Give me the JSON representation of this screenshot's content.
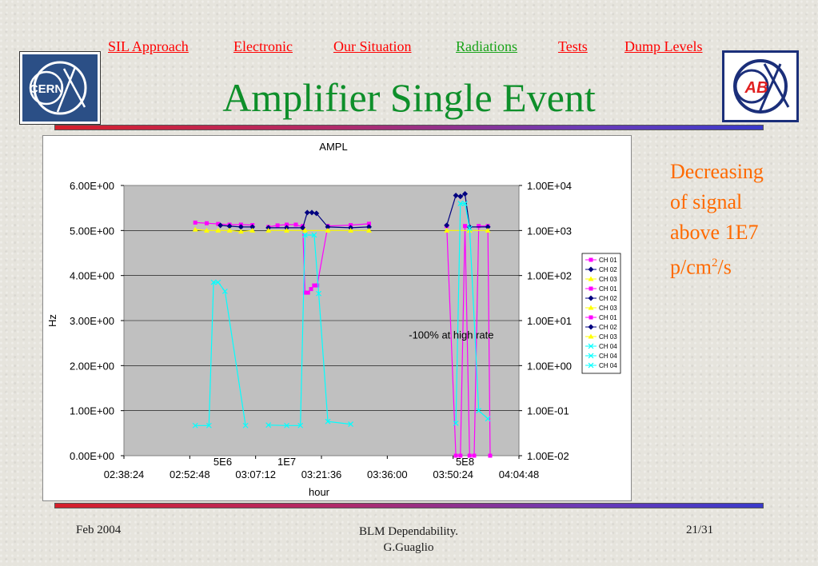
{
  "nav": {
    "items": [
      {
        "label": "SIL Approach",
        "color": "#ff0000"
      },
      {
        "label": "Electronic",
        "color": "#ff0000"
      },
      {
        "label": "Our Situation",
        "color": "#ff0000"
      },
      {
        "label": "Radiations",
        "color": "#19a319"
      },
      {
        "label": "Tests",
        "color": "#ff0000"
      },
      {
        "label": "Dump Levels",
        "color": "#ff0000"
      }
    ]
  },
  "title": "Amplifier Single Event",
  "logos": {
    "left": "CERN",
    "right": "AB"
  },
  "side_note": {
    "line1": "Decreasing",
    "line2": "of signal",
    "line3": "above 1E7",
    "line4_base": "p/cm",
    "line4_sup": "2",
    "line4_tail": "/s"
  },
  "footer": {
    "date": "Feb 2004",
    "center_line1": "BLM Dependability.",
    "center_line2": "G.Guaglio",
    "page": "21/31"
  },
  "chart_data": {
    "type": "line",
    "title": "AMPL",
    "xlabel": "hour",
    "ylabel": "Hz",
    "ylim": [
      0,
      6
    ],
    "y2_scale": "log",
    "y2lim": [
      0.01,
      10000
    ],
    "left_ticks": [
      "0.00E+00",
      "1.00E+00",
      "2.00E+00",
      "3.00E+00",
      "4.00E+00",
      "5.00E+00",
      "6.00E+00"
    ],
    "right_ticks": [
      "1.00E-02",
      "1.00E-01",
      "1.00E+00",
      "1.00E+01",
      "1.00E+02",
      "1.00E+03",
      "1.00E+04"
    ],
    "x_ticks": [
      "02:38:24",
      "02:52:48",
      "03:07:12",
      "03:21:36",
      "03:36:00",
      "03:50:24",
      "04:04:48"
    ],
    "xlim": [
      "02:38:24",
      "04:04:48"
    ],
    "annotations": [
      {
        "text": "5E6",
        "x": "03:00:00"
      },
      {
        "text": "1E7",
        "x": "03:14:00"
      },
      {
        "text": "5E8",
        "x": "03:53:00"
      },
      {
        "text": "-100% at high rate",
        "x": "03:50:00",
        "y": 2.6
      }
    ],
    "legend": {
      "placement": "right",
      "entries": [
        {
          "name": "CH 01",
          "color": "#ff00ff",
          "marker": "square"
        },
        {
          "name": "CH 02",
          "color": "#000080",
          "marker": "diamond"
        },
        {
          "name": "CH 03",
          "color": "#ffff00",
          "marker": "triangle"
        },
        {
          "name": "CH 01",
          "color": "#ff00ff",
          "marker": "square"
        },
        {
          "name": "CH 02",
          "color": "#000080",
          "marker": "diamond"
        },
        {
          "name": "CH 03",
          "color": "#ffff00",
          "marker": "triangle"
        },
        {
          "name": "CH 01",
          "color": "#ff00ff",
          "marker": "square"
        },
        {
          "name": "CH 02",
          "color": "#000080",
          "marker": "diamond"
        },
        {
          "name": "CH 03",
          "color": "#ffff00",
          "marker": "triangle"
        },
        {
          "name": "CH 04",
          "color": "#00ffff",
          "marker": "x"
        },
        {
          "name": "CH 04",
          "color": "#00ffff",
          "marker": "x"
        },
        {
          "name": "CH 04",
          "color": "#00ffff",
          "marker": "x"
        }
      ]
    },
    "series": [
      {
        "color": "#ff00ff",
        "marker": "square",
        "axis": "right",
        "points": [
          [
            "02:54:00",
            1500
          ],
          [
            "02:56:30",
            1450
          ],
          [
            "02:59:00",
            1400
          ],
          [
            "03:01:30",
            1350
          ],
          [
            "03:04:00",
            1350
          ],
          [
            "03:06:30",
            1320
          ]
        ]
      },
      {
        "color": "#000080",
        "marker": "diamond",
        "axis": "right",
        "points": [
          [
            "02:59:30",
            1300
          ],
          [
            "03:01:30",
            1250
          ],
          [
            "03:04:00",
            1200
          ],
          [
            "03:06:30",
            1200
          ]
        ]
      },
      {
        "color": "#ffff00",
        "marker": "triangle",
        "axis": "right",
        "points": [
          [
            "02:54:00",
            1050
          ],
          [
            "02:56:30",
            1000
          ],
          [
            "02:59:00",
            1000
          ],
          [
            "03:01:30",
            1000
          ],
          [
            "03:04:00",
            950
          ],
          [
            "03:06:30",
            1000
          ]
        ]
      },
      {
        "color": "#00ffff",
        "marker": "x",
        "axis": "left",
        "points": [
          [
            "02:54:00",
            0.67
          ],
          [
            "02:57:00",
            0.67
          ],
          [
            "02:58:00",
            3.85
          ],
          [
            "02:59:00",
            3.85
          ],
          [
            "03:00:30",
            3.65
          ],
          [
            "03:05:00",
            0.67
          ]
        ]
      },
      {
        "color": "#ff00ff",
        "marker": "square",
        "axis": "right",
        "points": [
          [
            "03:10:00",
            1200
          ],
          [
            "03:12:00",
            1300
          ],
          [
            "03:14:00",
            1350
          ],
          [
            "03:16:00",
            1350
          ],
          [
            "03:17:30",
            1200
          ]
        ]
      },
      {
        "color": "#ff00ff",
        "marker": "square",
        "axis": "left",
        "points": [
          [
            "03:17:30",
            5.1
          ],
          [
            "03:18:00",
            3.62
          ],
          [
            "03:18:40",
            3.62
          ],
          [
            "03:19:20",
            3.7
          ],
          [
            "03:20:00",
            3.78
          ],
          [
            "03:20:40",
            3.78
          ],
          [
            "03:23:00",
            5.1
          ],
          [
            "03:28:00",
            5.12
          ],
          [
            "03:32:00",
            5.15
          ]
        ]
      },
      {
        "color": "#000080",
        "marker": "diamond",
        "axis": "right",
        "points": [
          [
            "03:10:00",
            1150
          ],
          [
            "03:14:00",
            1150
          ],
          [
            "03:17:30",
            1150
          ],
          [
            "03:18:30",
            2500
          ],
          [
            "03:19:30",
            2500
          ],
          [
            "03:20:30",
            2400
          ],
          [
            "03:23:00",
            1200
          ],
          [
            "03:28:00",
            1150
          ],
          [
            "03:32:00",
            1200
          ]
        ]
      },
      {
        "color": "#ffff00",
        "marker": "triangle",
        "axis": "right",
        "points": [
          [
            "03:10:00",
            1000
          ],
          [
            "03:14:00",
            1000
          ],
          [
            "03:18:00",
            1000
          ],
          [
            "03:23:00",
            1000
          ],
          [
            "03:28:00",
            1000
          ],
          [
            "03:32:00",
            1000
          ]
        ]
      },
      {
        "color": "#00ffff",
        "marker": "x",
        "axis": "left",
        "points": [
          [
            "03:10:00",
            0.68
          ],
          [
            "03:14:00",
            0.67
          ],
          [
            "03:17:00",
            0.67
          ],
          [
            "03:18:00",
            4.9
          ],
          [
            "03:20:00",
            4.9
          ],
          [
            "03:21:00",
            3.6
          ],
          [
            "03:23:00",
            0.76
          ],
          [
            "03:28:00",
            0.7
          ]
        ]
      },
      {
        "color": "#ff00ff",
        "marker": "square",
        "axis": "left",
        "points": [
          [
            "03:49:00",
            5.1
          ],
          [
            "03:51:00",
            0.0
          ],
          [
            "03:52:00",
            0.0
          ],
          [
            "03:53:00",
            5.1
          ],
          [
            "03:54:00",
            0.0
          ],
          [
            "03:55:00",
            0.0
          ],
          [
            "03:56:00",
            5.1
          ],
          [
            "03:58:00",
            5.1
          ],
          [
            "03:58:30",
            0.0
          ]
        ]
      },
      {
        "color": "#000080",
        "marker": "diamond",
        "axis": "right",
        "points": [
          [
            "03:49:00",
            1300
          ],
          [
            "03:51:00",
            6000
          ],
          [
            "03:52:00",
            5700
          ],
          [
            "03:53:00",
            6500
          ],
          [
            "03:54:00",
            1200
          ],
          [
            "03:58:00",
            1200
          ]
        ]
      },
      {
        "color": "#ffff00",
        "marker": "triangle",
        "axis": "right",
        "points": [
          [
            "03:49:00",
            1000
          ],
          [
            "03:54:00",
            1000
          ],
          [
            "03:58:00",
            1000
          ]
        ]
      },
      {
        "color": "#00ffff",
        "marker": "x",
        "axis": "left",
        "points": [
          [
            "03:51:00",
            0.72
          ],
          [
            "03:52:00",
            5.6
          ],
          [
            "03:53:00",
            5.6
          ],
          [
            "03:54:00",
            5.05
          ],
          [
            "03:56:00",
            1.0
          ],
          [
            "03:58:00",
            0.82
          ]
        ]
      }
    ]
  }
}
